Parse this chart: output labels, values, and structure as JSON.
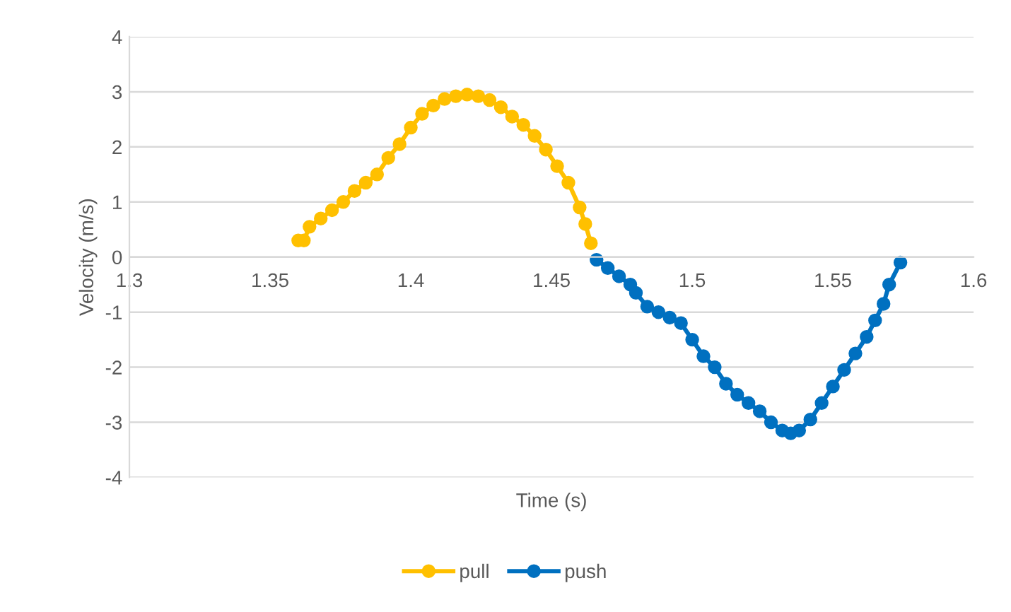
{
  "chart_data": {
    "type": "line",
    "xlabel": "Time (s)",
    "ylabel": "Velocity (m/s)",
    "xlim": [
      1.3,
      1.6
    ],
    "xticks": [
      1.3,
      1.35,
      1.4,
      1.45,
      1.5,
      1.55,
      1.6
    ],
    "ylim": [
      -4,
      4
    ],
    "yticks": [
      -4,
      -3,
      -2,
      -1,
      0,
      1,
      2,
      3,
      4
    ],
    "grid": "y",
    "legend": "bottom",
    "marker": "circle",
    "line_style": "solid",
    "series": [
      {
        "name": "pull",
        "color": "#ffc000",
        "x": [
          1.36,
          1.362,
          1.364,
          1.368,
          1.372,
          1.376,
          1.38,
          1.384,
          1.388,
          1.392,
          1.396,
          1.4,
          1.404,
          1.408,
          1.412,
          1.416,
          1.42,
          1.424,
          1.428,
          1.432,
          1.436,
          1.44,
          1.444,
          1.448,
          1.452,
          1.456,
          1.46,
          1.462,
          1.464
        ],
        "values": [
          0.3,
          0.3,
          0.55,
          0.7,
          0.85,
          1.0,
          1.2,
          1.35,
          1.5,
          1.8,
          2.05,
          2.35,
          2.6,
          2.75,
          2.87,
          2.92,
          2.95,
          2.92,
          2.85,
          2.72,
          2.55,
          2.4,
          2.2,
          1.95,
          1.65,
          1.35,
          0.9,
          0.6,
          0.25
        ]
      },
      {
        "name": "push",
        "color": "#0070c0",
        "x": [
          1.466,
          1.47,
          1.474,
          1.478,
          1.48,
          1.484,
          1.488,
          1.492,
          1.496,
          1.5,
          1.504,
          1.508,
          1.512,
          1.516,
          1.52,
          1.524,
          1.528,
          1.532,
          1.535,
          1.538,
          1.542,
          1.546,
          1.55,
          1.554,
          1.558,
          1.562,
          1.565,
          1.568,
          1.57,
          1.574
        ],
        "values": [
          -0.05,
          -0.2,
          -0.35,
          -0.5,
          -0.65,
          -0.9,
          -1.0,
          -1.1,
          -1.2,
          -1.5,
          -1.8,
          -2.0,
          -2.3,
          -2.5,
          -2.65,
          -2.8,
          -3.0,
          -3.15,
          -3.2,
          -3.15,
          -2.95,
          -2.65,
          -2.35,
          -2.05,
          -1.75,
          -1.45,
          -1.15,
          -0.85,
          -0.5,
          -0.1
        ]
      }
    ]
  }
}
